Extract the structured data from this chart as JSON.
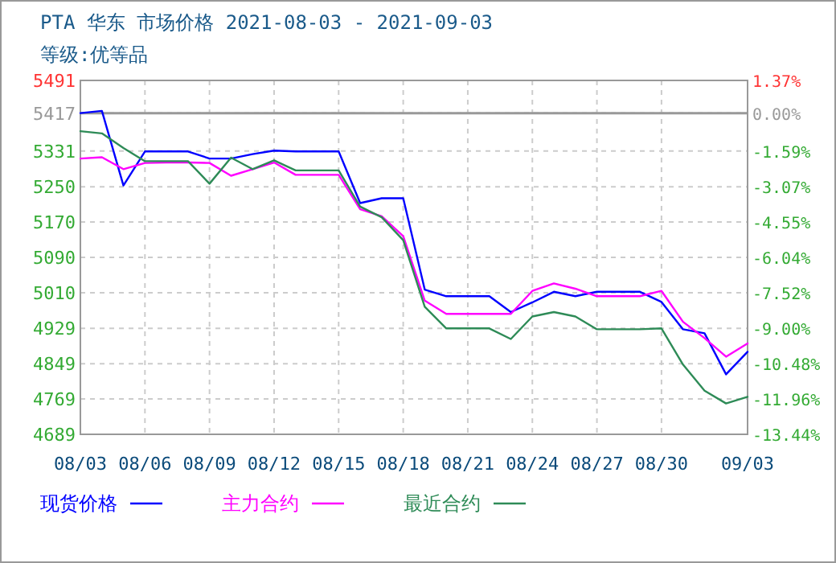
{
  "chart_data": {
    "type": "line",
    "title": "PTA 华东 市场价格 2021-08-03 - 2021-09-03",
    "subtitle": "等级:优等品",
    "x": [
      "2021-08-03",
      "2021-08-04",
      "2021-08-05",
      "2021-08-06",
      "2021-08-07",
      "2021-08-08",
      "2021-08-09",
      "2021-08-10",
      "2021-08-11",
      "2021-08-12",
      "2021-08-13",
      "2021-08-14",
      "2021-08-15",
      "2021-08-16",
      "2021-08-17",
      "2021-08-18",
      "2021-08-19",
      "2021-08-20",
      "2021-08-21",
      "2021-08-22",
      "2021-08-23",
      "2021-08-24",
      "2021-08-25",
      "2021-08-26",
      "2021-08-27",
      "2021-08-28",
      "2021-08-29",
      "2021-08-30",
      "2021-08-31",
      "2021-09-01",
      "2021-09-02",
      "2021-09-03"
    ],
    "series": [
      {
        "name": "现货价格",
        "color": "#0000ff",
        "values": [
          5417,
          5422,
          5253,
          5330,
          5330,
          5330,
          5314,
          5314,
          5324,
          5332,
          5330,
          5330,
          5330,
          5213,
          5224,
          5224,
          5017,
          5002,
          5002,
          5002,
          4966,
          4988,
          5012,
          5002,
          5012,
          5012,
          5012,
          4989,
          4927,
          4918,
          4825,
          4876
        ]
      },
      {
        "name": "主力合约",
        "color": "#ff00ff",
        "values": [
          5314,
          5317,
          5290,
          5304,
          5305,
          5305,
          5304,
          5275,
          5290,
          5305,
          5277,
          5277,
          5277,
          5199,
          5183,
          5138,
          4992,
          4962,
          4962,
          4962,
          4962,
          5014,
          5031,
          5019,
          5002,
          5002,
          5002,
          5014,
          4944,
          4907,
          4865,
          4895
        ]
      },
      {
        "name": "最近合约",
        "color": "#2e8b57",
        "values": [
          5376,
          5371,
          5338,
          5308,
          5308,
          5308,
          5257,
          5316,
          5290,
          5310,
          5287,
          5287,
          5287,
          5205,
          5181,
          5129,
          4978,
          4929,
          4929,
          4929,
          4905,
          4956,
          4966,
          4956,
          4927,
          4927,
          4927,
          4929,
          4847,
          4788,
          4759,
          4774
        ]
      }
    ],
    "xlim": [
      "2021-08-03",
      "2021-09-03"
    ],
    "xticks": [
      {
        "value": "2021-08-03",
        "label": "08/03"
      },
      {
        "value": "2021-08-06",
        "label": "08/06"
      },
      {
        "value": "2021-08-09",
        "label": "08/09"
      },
      {
        "value": "2021-08-12",
        "label": "08/12"
      },
      {
        "value": "2021-08-15",
        "label": "08/15"
      },
      {
        "value": "2021-08-18",
        "label": "08/18"
      },
      {
        "value": "2021-08-21",
        "label": "08/21"
      },
      {
        "value": "2021-08-24",
        "label": "08/24"
      },
      {
        "value": "2021-08-27",
        "label": "08/27"
      },
      {
        "value": "2021-08-30",
        "label": "08/30"
      },
      {
        "value": "2021-09-03",
        "label": "09/03"
      }
    ],
    "ylim": [
      4689,
      5491
    ],
    "yticks": [
      5491,
      5417,
      5331,
      5250,
      5170,
      5090,
      5010,
      4929,
      4849,
      4769,
      4689
    ],
    "y2lim": [
      -13.44,
      1.37
    ],
    "y2ticks": [
      {
        "value": 1.37,
        "label": "1.37%"
      },
      {
        "value": 0,
        "label": "0.00%"
      },
      {
        "value": -1.59,
        "label": "-1.59%"
      },
      {
        "value": -3.07,
        "label": "-3.07%"
      },
      {
        "value": -4.55,
        "label": "-4.55%"
      },
      {
        "value": -6.04,
        "label": "-6.04%"
      },
      {
        "value": -7.52,
        "label": "-7.52%"
      },
      {
        "value": -9.0,
        "label": "-9.00%"
      },
      {
        "value": -10.48,
        "label": "-10.48%"
      },
      {
        "value": -11.96,
        "label": "-11.96%"
      },
      {
        "value": -13.44,
        "label": "-13.44%"
      }
    ],
    "ref_lines": [
      {
        "axis": "y2",
        "value": 0,
        "color": "#999999"
      }
    ],
    "grid": true,
    "legend": "bottom",
    "marker": "none",
    "line_style": "solid"
  }
}
